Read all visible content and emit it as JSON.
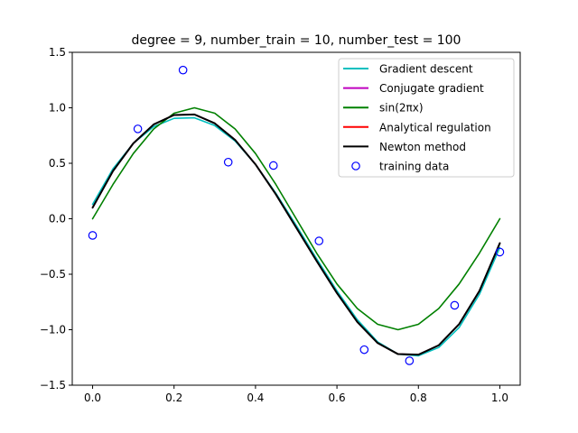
{
  "chart_data": {
    "type": "line",
    "title": "degree = 9, number_train = 10, number_test = 100",
    "xlabel": "",
    "ylabel": "",
    "xlim": [
      -0.05,
      1.05
    ],
    "ylim": [
      -1.5,
      1.5
    ],
    "x_ticks": [
      0.0,
      0.2,
      0.4,
      0.6,
      0.8,
      1.0
    ],
    "x_tick_labels": [
      "0.0",
      "0.2",
      "0.4",
      "0.6",
      "0.8",
      "1.0"
    ],
    "y_ticks": [
      -1.5,
      -1.0,
      -0.5,
      0.0,
      0.5,
      1.0,
      1.5
    ],
    "y_tick_labels": [
      "−1.5",
      "−1.0",
      "−0.5",
      "0.0",
      "0.5",
      "1.0",
      "1.5"
    ],
    "grid": false,
    "legend_position": "top-right",
    "series": [
      {
        "name": "Gradient descent",
        "color": "#00bfbf",
        "x": [
          0.0,
          0.05,
          0.1,
          0.15,
          0.2,
          0.25,
          0.3,
          0.35,
          0.4,
          0.45,
          0.5,
          0.55,
          0.6,
          0.65,
          0.7,
          0.75,
          0.8,
          0.85,
          0.9,
          0.95,
          1.0
        ],
        "y": [
          0.13,
          0.45,
          0.68,
          0.83,
          0.905,
          0.91,
          0.84,
          0.7,
          0.49,
          0.23,
          -0.06,
          -0.36,
          -0.65,
          -0.91,
          -1.11,
          -1.22,
          -1.235,
          -1.16,
          -0.98,
          -0.68,
          -0.26
        ]
      },
      {
        "name": "Conjugate gradient",
        "color": "#bf00bf",
        "x": [
          0.0,
          0.05,
          0.1,
          0.15,
          0.2,
          0.25,
          0.3,
          0.35,
          0.4,
          0.45,
          0.5,
          0.55,
          0.6,
          0.65,
          0.7,
          0.75,
          0.8,
          0.85,
          0.9,
          0.95,
          1.0
        ],
        "y": [
          0.1,
          0.43,
          0.68,
          0.85,
          0.935,
          0.94,
          0.86,
          0.71,
          0.49,
          0.22,
          -0.08,
          -0.38,
          -0.67,
          -0.93,
          -1.12,
          -1.22,
          -1.225,
          -1.14,
          -0.95,
          -0.65,
          -0.22
        ]
      },
      {
        "name": "sin(2πx)",
        "color": "#008000",
        "x": [
          0.0,
          0.05,
          0.1,
          0.15,
          0.2,
          0.25,
          0.3,
          0.35,
          0.4,
          0.45,
          0.5,
          0.55,
          0.6,
          0.65,
          0.7,
          0.75,
          0.8,
          0.85,
          0.9,
          0.95,
          1.0
        ],
        "y": [
          0.0,
          0.309,
          0.588,
          0.809,
          0.951,
          1.0,
          0.951,
          0.809,
          0.588,
          0.309,
          0.0,
          -0.309,
          -0.588,
          -0.809,
          -0.951,
          -1.0,
          -0.951,
          -0.809,
          -0.588,
          -0.309,
          0.0
        ]
      },
      {
        "name": "Analytical regulation",
        "color": "#ff0000",
        "x": [
          0.0,
          0.05,
          0.1,
          0.15,
          0.2,
          0.25,
          0.3,
          0.35,
          0.4,
          0.45,
          0.5,
          0.55,
          0.6,
          0.65,
          0.7,
          0.75,
          0.8,
          0.85,
          0.9,
          0.95,
          1.0
        ],
        "y": [
          0.1,
          0.43,
          0.68,
          0.85,
          0.935,
          0.94,
          0.86,
          0.71,
          0.49,
          0.22,
          -0.08,
          -0.38,
          -0.67,
          -0.93,
          -1.12,
          -1.22,
          -1.225,
          -1.14,
          -0.95,
          -0.65,
          -0.22
        ]
      },
      {
        "name": "Newton method",
        "color": "#000000",
        "x": [
          0.0,
          0.05,
          0.1,
          0.15,
          0.2,
          0.25,
          0.3,
          0.35,
          0.4,
          0.45,
          0.5,
          0.55,
          0.6,
          0.65,
          0.7,
          0.75,
          0.8,
          0.85,
          0.9,
          0.95,
          1.0
        ],
        "y": [
          0.1,
          0.43,
          0.68,
          0.85,
          0.935,
          0.94,
          0.86,
          0.71,
          0.49,
          0.22,
          -0.08,
          -0.38,
          -0.67,
          -0.93,
          -1.12,
          -1.22,
          -1.225,
          -1.14,
          -0.95,
          -0.65,
          -0.22
        ]
      }
    ],
    "scatter": {
      "name": "training data",
      "color": "#0000ff",
      "x": [
        0.0,
        0.111,
        0.222,
        0.333,
        0.444,
        0.556,
        0.667,
        0.778,
        0.889,
        1.0
      ],
      "y": [
        -0.15,
        0.81,
        1.34,
        0.51,
        0.48,
        -0.2,
        -1.18,
        -1.28,
        -0.78,
        -0.3
      ]
    }
  }
}
